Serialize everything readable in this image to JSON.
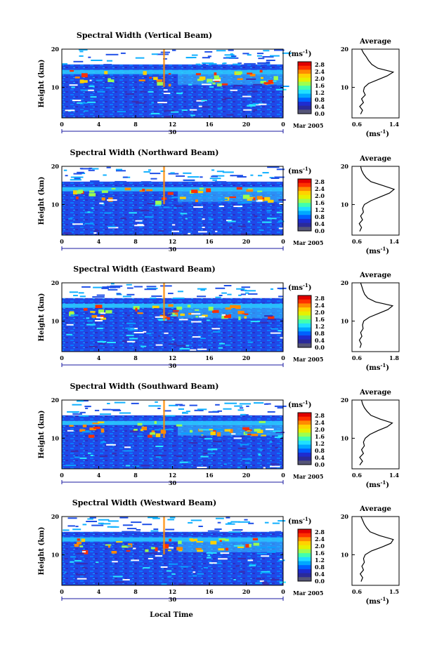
{
  "figure": {
    "x_axis_title": "Local Time",
    "date_label": "Mar 2005",
    "day_label": "30",
    "height_label": "Height (km)",
    "unit_label": "(ms",
    "unit_exp": "-1",
    "unit_close": ")",
    "average_title": "Average"
  },
  "colorbar_ticks": [
    "2.8",
    "2.4",
    "2.0",
    "1.6",
    "1.2",
    "0.8",
    "0.4",
    "0.0"
  ],
  "colorbar_colors": [
    "#e00000",
    "#ff3000",
    "#ff8a00",
    "#ffd200",
    "#e6f000",
    "#9cff50",
    "#40ffb0",
    "#20e0ff",
    "#00a8ff",
    "#0060ff",
    "#1e2cd0",
    "#2a2a9a",
    "#555577"
  ],
  "chart_data": [
    {
      "type": "heatmap",
      "title": "Spectral Width (Vertical Beam)",
      "xlabel": "",
      "ylabel": "Height (km)",
      "xlim": [
        0,
        24
      ],
      "ylim": [
        2,
        20
      ],
      "x_ticks": [
        "0",
        "4",
        "8",
        "12",
        "16",
        "20",
        "0"
      ],
      "y_ticks": [
        "20",
        "10"
      ],
      "colorbar": {
        "label": "(ms-1)",
        "range": [
          0.0,
          2.8
        ]
      },
      "average_profile": {
        "title": "Average",
        "xlabel": "(ms-1)",
        "xlim": [
          0.6,
          1.4
        ],
        "x_ticks": [
          "0.6",
          "1.4"
        ],
        "y_ticks": [
          "20",
          "10"
        ],
        "height": [
          3,
          4,
          5,
          6,
          7,
          8,
          9,
          10,
          11,
          12,
          13,
          14,
          15,
          16,
          17,
          18,
          19,
          20
        ],
        "width": [
          0.68,
          0.72,
          0.66,
          0.74,
          0.7,
          0.78,
          0.74,
          0.76,
          0.85,
          1.05,
          1.25,
          1.38,
          1.05,
          0.92,
          0.85,
          0.8,
          0.74,
          0.7
        ]
      }
    },
    {
      "type": "heatmap",
      "title": "Spectral Width (Northward Beam)",
      "xlabel": "",
      "ylabel": "Height (km)",
      "xlim": [
        0,
        24
      ],
      "ylim": [
        2,
        20
      ],
      "x_ticks": [
        "0",
        "4",
        "8",
        "12",
        "16",
        "20",
        "0"
      ],
      "y_ticks": [
        "20",
        "10"
      ],
      "colorbar": {
        "label": "(ms-1)",
        "range": [
          0.0,
          2.8
        ]
      },
      "average_profile": {
        "title": "Average",
        "xlabel": "(ms-1)",
        "xlim": [
          0.6,
          1.4
        ],
        "x_ticks": [
          "0.6",
          "1.4"
        ],
        "y_ticks": [
          "20",
          "10"
        ],
        "height": [
          3,
          4,
          5,
          6,
          7,
          8,
          9,
          10,
          11,
          12,
          13,
          14,
          15,
          16,
          17,
          18,
          19,
          20
        ],
        "width": [
          0.66,
          0.7,
          0.65,
          0.72,
          0.68,
          0.74,
          0.72,
          0.76,
          0.9,
          1.1,
          1.3,
          1.4,
          1.15,
          0.9,
          0.8,
          0.74,
          0.7,
          0.68
        ]
      }
    },
    {
      "type": "heatmap",
      "title": "Spectral Width (Eastward Beam)",
      "xlabel": "",
      "ylabel": "Height (km)",
      "xlim": [
        0,
        24
      ],
      "ylim": [
        2,
        20
      ],
      "x_ticks": [
        "0",
        "4",
        "8",
        "12",
        "16",
        "20",
        "0"
      ],
      "y_ticks": [
        "20",
        "10"
      ],
      "colorbar": {
        "label": "(ms-1)",
        "range": [
          0.0,
          2.8
        ]
      },
      "average_profile": {
        "title": "Average",
        "xlabel": "(ms-1)",
        "xlim": [
          0.6,
          1.8
        ],
        "x_ticks": [
          "0.6",
          "1.8"
        ],
        "y_ticks": [
          "20",
          "10"
        ],
        "height": [
          3,
          4,
          5,
          6,
          7,
          8,
          9,
          10,
          11,
          12,
          13,
          14,
          15,
          16,
          17,
          18,
          19,
          20
        ],
        "width": [
          0.7,
          0.74,
          0.68,
          0.76,
          0.72,
          0.8,
          0.78,
          0.82,
          1.0,
          1.3,
          1.6,
          1.75,
          1.2,
          0.95,
          0.85,
          0.8,
          0.76,
          0.72
        ]
      }
    },
    {
      "type": "heatmap",
      "title": "Spectral Width (Southward Beam)",
      "xlabel": "",
      "ylabel": "Height (km)",
      "xlim": [
        0,
        24
      ],
      "ylim": [
        2,
        20
      ],
      "x_ticks": [
        "0",
        "4",
        "8",
        "12",
        "16",
        "20",
        "0"
      ],
      "y_ticks": [
        "20",
        "10"
      ],
      "colorbar": {
        "label": "(ms-1)",
        "range": [
          0.0,
          2.8
        ]
      },
      "average_profile": {
        "title": "Average",
        "xlabel": "(ms-1)",
        "xlim": [
          0.6,
          1.4
        ],
        "x_ticks": [
          "0.6",
          "1.4"
        ],
        "y_ticks": [
          "20",
          "10"
        ],
        "height": [
          3,
          4,
          5,
          6,
          7,
          8,
          9,
          10,
          11,
          12,
          13,
          14,
          15,
          16,
          17,
          18,
          19,
          20
        ],
        "width": [
          0.66,
          0.72,
          0.66,
          0.74,
          0.7,
          0.76,
          0.74,
          0.78,
          0.88,
          1.05,
          1.25,
          1.36,
          1.1,
          0.9,
          0.82,
          0.76,
          0.72,
          0.7
        ]
      }
    },
    {
      "type": "heatmap",
      "title": "Spectral Width (Westward Beam)",
      "xlabel": "Local Time",
      "ylabel": "Height (km)",
      "xlim": [
        0,
        24
      ],
      "ylim": [
        2,
        20
      ],
      "x_ticks": [
        "0",
        "4",
        "8",
        "12",
        "16",
        "20",
        "0"
      ],
      "y_ticks": [
        "20",
        "10"
      ],
      "colorbar": {
        "label": "(ms-1)",
        "range": [
          0.0,
          2.8
        ]
      },
      "average_profile": {
        "title": "Average",
        "xlabel": "(ms-1)",
        "xlim": [
          0.6,
          1.5
        ],
        "x_ticks": [
          "0.6",
          "1.5"
        ],
        "y_ticks": [
          "20",
          "10"
        ],
        "height": [
          3,
          4,
          5,
          6,
          7,
          8,
          9,
          10,
          11,
          12,
          13,
          14,
          15,
          16,
          17,
          18,
          19,
          20
        ],
        "width": [
          0.7,
          0.74,
          0.68,
          0.76,
          0.72,
          0.78,
          0.76,
          0.8,
          0.95,
          1.2,
          1.42,
          1.48,
          1.15,
          0.92,
          0.84,
          0.78,
          0.74,
          0.7
        ]
      }
    }
  ]
}
